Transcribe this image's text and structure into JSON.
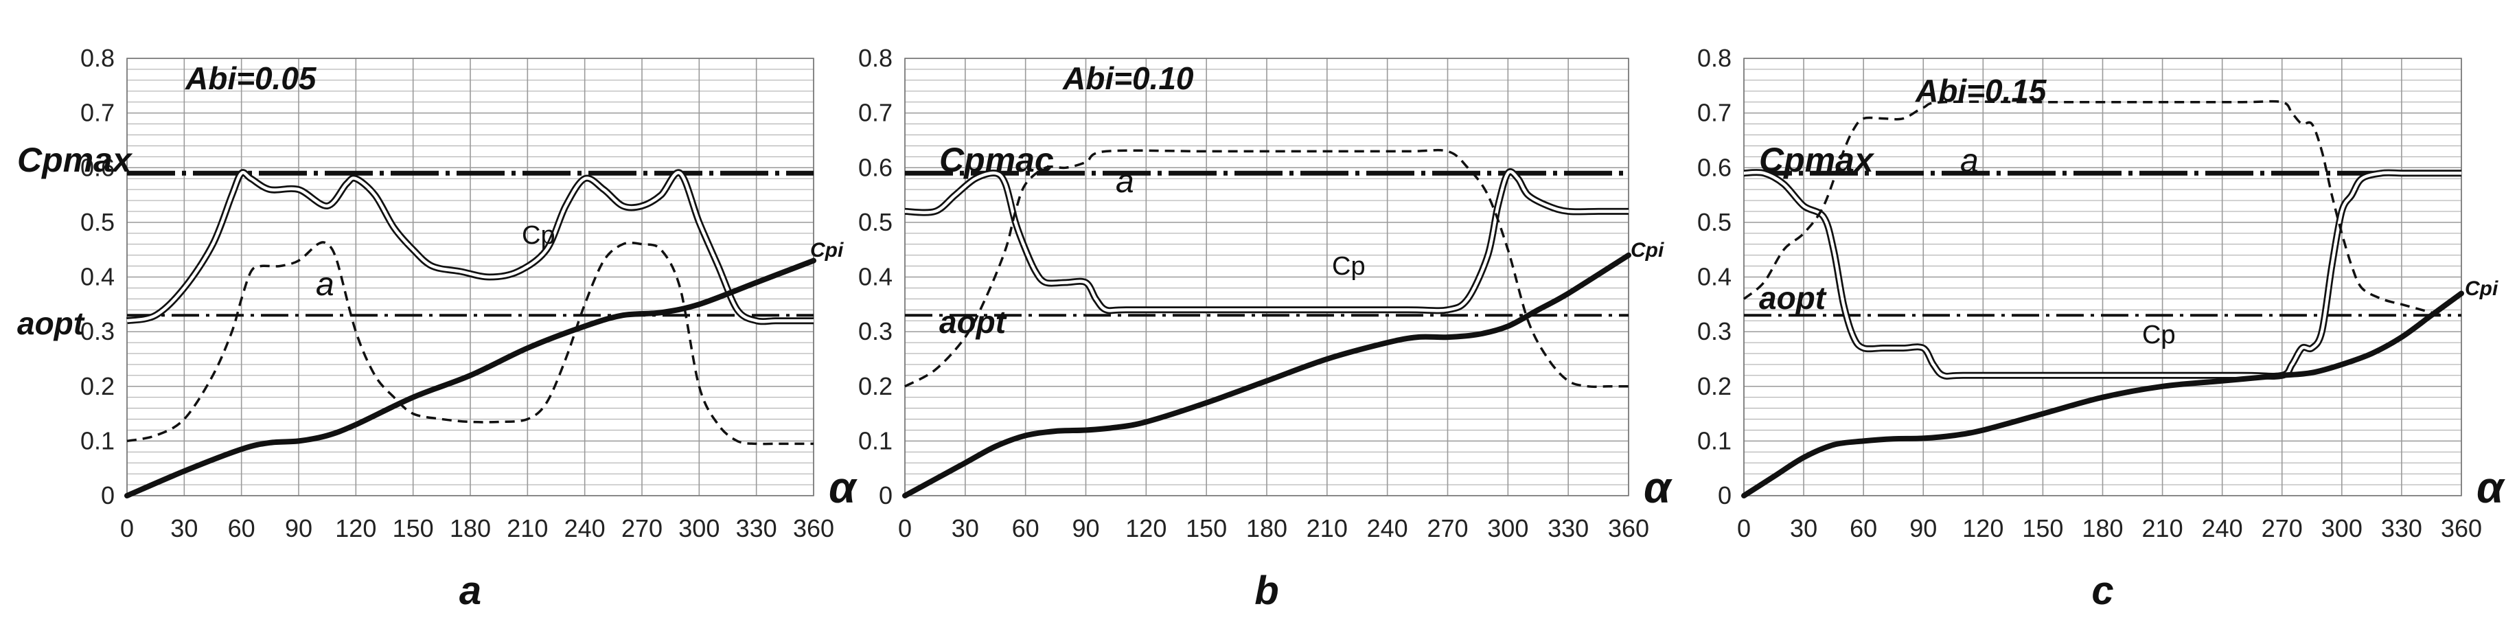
{
  "colors": {
    "grid": "#9a9a9a",
    "curve": "#111111",
    "background": "#ffffff"
  },
  "chart_data": [
    {
      "type": "line",
      "panel_label": "a",
      "title": "Abi=0.05",
      "xlabel": "α",
      "xlim": [
        0,
        360
      ],
      "ylim": [
        0,
        0.8
      ],
      "x_ticks": [
        "0",
        "30",
        "60",
        "90",
        "120",
        "150",
        "180",
        "210",
        "240",
        "270",
        "300",
        "330",
        "360"
      ],
      "y_ticks": [
        "0",
        "0.1",
        "0.2",
        "0.3",
        "0.4",
        "0.5",
        "0.6",
        "0.7",
        "0.8"
      ],
      "grid": true,
      "hlines": [
        {
          "name": "Cpmax",
          "label": "Cpmax",
          "y": 0.59
        },
        {
          "name": "aopt",
          "label": "aopt",
          "y": 0.33
        }
      ],
      "series": [
        {
          "name": "Cp",
          "label": "Cp",
          "x": [
            0,
            15,
            30,
            45,
            55,
            60,
            65,
            75,
            90,
            105,
            115,
            120,
            130,
            140,
            150,
            160,
            175,
            190,
            205,
            220,
            230,
            240,
            250,
            260,
            270,
            280,
            290,
            300,
            310,
            320,
            330,
            340,
            350,
            360
          ],
          "y": [
            0.32,
            0.33,
            0.38,
            0.46,
            0.55,
            0.59,
            0.58,
            0.56,
            0.56,
            0.53,
            0.57,
            0.58,
            0.55,
            0.49,
            0.45,
            0.42,
            0.41,
            0.4,
            0.41,
            0.45,
            0.53,
            0.58,
            0.56,
            0.53,
            0.53,
            0.55,
            0.59,
            0.5,
            0.42,
            0.34,
            0.32,
            0.32,
            0.32,
            0.32
          ]
        },
        {
          "name": "a",
          "label": "a",
          "x": [
            0,
            15,
            30,
            45,
            55,
            60,
            65,
            70,
            80,
            90,
            100,
            105,
            110,
            120,
            130,
            140,
            150,
            165,
            180,
            195,
            210,
            220,
            230,
            240,
            250,
            260,
            270,
            280,
            290,
            300,
            310,
            320,
            330,
            340,
            350,
            360
          ],
          "y": [
            0.1,
            0.11,
            0.14,
            0.22,
            0.3,
            0.36,
            0.41,
            0.42,
            0.42,
            0.43,
            0.46,
            0.46,
            0.43,
            0.3,
            0.22,
            0.18,
            0.15,
            0.14,
            0.135,
            0.135,
            0.14,
            0.17,
            0.25,
            0.35,
            0.43,
            0.46,
            0.46,
            0.45,
            0.38,
            0.2,
            0.13,
            0.1,
            0.095,
            0.095,
            0.095,
            0.095
          ]
        },
        {
          "name": "Cpi",
          "label": "Cpi",
          "x": [
            0,
            30,
            60,
            75,
            90,
            105,
            120,
            150,
            180,
            210,
            240,
            260,
            280,
            300,
            330,
            360
          ],
          "y": [
            0,
            0.045,
            0.085,
            0.097,
            0.1,
            0.11,
            0.13,
            0.18,
            0.22,
            0.27,
            0.31,
            0.33,
            0.335,
            0.35,
            0.39,
            0.43
          ]
        }
      ]
    },
    {
      "type": "line",
      "panel_label": "b",
      "title": "Abi=0.10",
      "xlabel": "α",
      "xlim": [
        0,
        360
      ],
      "ylim": [
        0,
        0.8
      ],
      "x_ticks": [
        "0",
        "30",
        "60",
        "90",
        "120",
        "150",
        "180",
        "210",
        "240",
        "270",
        "300",
        "330",
        "360"
      ],
      "y_ticks": [
        "0",
        "0.1",
        "0.2",
        "0.3",
        "0.4",
        "0.5",
        "0.6",
        "0.7",
        "0.8"
      ],
      "grid": true,
      "hlines": [
        {
          "name": "Cpmax",
          "label": "Cpmac",
          "y": 0.59
        },
        {
          "name": "aopt",
          "label": "aopt",
          "y": 0.33
        }
      ],
      "series": [
        {
          "name": "Cp",
          "label": "Cp",
          "x": [
            0,
            15,
            25,
            35,
            45,
            50,
            55,
            60,
            65,
            70,
            80,
            90,
            95,
            100,
            110,
            150,
            200,
            250,
            270,
            280,
            290,
            295,
            300,
            305,
            310,
            320,
            330,
            345,
            360
          ],
          "y": [
            0.52,
            0.52,
            0.55,
            0.58,
            0.59,
            0.57,
            0.5,
            0.45,
            0.41,
            0.39,
            0.39,
            0.39,
            0.36,
            0.34,
            0.34,
            0.34,
            0.34,
            0.34,
            0.34,
            0.36,
            0.44,
            0.53,
            0.59,
            0.58,
            0.55,
            0.53,
            0.52,
            0.52,
            0.52
          ]
        },
        {
          "name": "a",
          "label": "a",
          "x": [
            0,
            15,
            30,
            40,
            50,
            55,
            60,
            70,
            80,
            90,
            100,
            150,
            200,
            250,
            270,
            280,
            290,
            300,
            310,
            320,
            330,
            340,
            350,
            360
          ],
          "y": [
            0.2,
            0.23,
            0.29,
            0.36,
            0.45,
            0.52,
            0.57,
            0.6,
            0.6,
            0.61,
            0.63,
            0.63,
            0.63,
            0.63,
            0.63,
            0.6,
            0.55,
            0.45,
            0.32,
            0.25,
            0.21,
            0.2,
            0.2,
            0.2
          ]
        },
        {
          "name": "Cpi",
          "label": "Cpi",
          "x": [
            0,
            15,
            30,
            45,
            60,
            75,
            90,
            105,
            120,
            150,
            180,
            210,
            240,
            255,
            270,
            285,
            300,
            315,
            330,
            360
          ],
          "y": [
            0,
            0.03,
            0.06,
            0.09,
            0.11,
            0.118,
            0.12,
            0.125,
            0.135,
            0.17,
            0.21,
            0.25,
            0.28,
            0.29,
            0.29,
            0.295,
            0.31,
            0.34,
            0.37,
            0.44
          ]
        }
      ]
    },
    {
      "type": "line",
      "panel_label": "c",
      "title": "Abi=0.15",
      "xlabel": "α",
      "xlim": [
        0,
        360
      ],
      "ylim": [
        0,
        0.8
      ],
      "x_ticks": [
        "0",
        "30",
        "60",
        "90",
        "120",
        "150",
        "180",
        "210",
        "240",
        "270",
        "300",
        "330",
        "360"
      ],
      "y_ticks": [
        "0",
        "0.1",
        "0.2",
        "0.3",
        "0.4",
        "0.5",
        "0.6",
        "0.7",
        "0.8"
      ],
      "grid": true,
      "hlines": [
        {
          "name": "Cpmax",
          "label": "Cpmax",
          "y": 0.59
        },
        {
          "name": "aopt",
          "label": "aopt",
          "y": 0.33
        }
      ],
      "series": [
        {
          "name": "Cp",
          "label": "Cp",
          "x": [
            0,
            10,
            20,
            30,
            40,
            45,
            50,
            55,
            60,
            70,
            80,
            90,
            95,
            100,
            110,
            150,
            200,
            250,
            270,
            275,
            280,
            285,
            290,
            295,
            300,
            305,
            310,
            320,
            330,
            340,
            360
          ],
          "y": [
            0.59,
            0.59,
            0.57,
            0.53,
            0.51,
            0.45,
            0.35,
            0.29,
            0.27,
            0.27,
            0.27,
            0.27,
            0.24,
            0.22,
            0.22,
            0.22,
            0.22,
            0.22,
            0.22,
            0.24,
            0.27,
            0.27,
            0.3,
            0.42,
            0.52,
            0.55,
            0.58,
            0.59,
            0.59,
            0.59,
            0.59
          ]
        },
        {
          "name": "a",
          "label": "a",
          "x": [
            0,
            10,
            20,
            30,
            40,
            50,
            55,
            60,
            70,
            80,
            90,
            100,
            150,
            200,
            250,
            270,
            275,
            280,
            285,
            290,
            295,
            300,
            305,
            310,
            320,
            330,
            340,
            350
          ],
          "y": [
            0.36,
            0.39,
            0.45,
            0.48,
            0.53,
            0.63,
            0.67,
            0.69,
            0.69,
            0.69,
            0.71,
            0.72,
            0.72,
            0.72,
            0.72,
            0.72,
            0.7,
            0.68,
            0.68,
            0.63,
            0.55,
            0.48,
            0.42,
            0.38,
            0.36,
            0.35,
            0.34,
            0.33
          ]
        },
        {
          "name": "Cpi",
          "label": "Cpi",
          "x": [
            0,
            15,
            30,
            45,
            60,
            75,
            90,
            105,
            120,
            150,
            180,
            210,
            240,
            255,
            270,
            285,
            300,
            315,
            330,
            345,
            360
          ],
          "y": [
            0,
            0.035,
            0.07,
            0.093,
            0.1,
            0.104,
            0.105,
            0.11,
            0.12,
            0.15,
            0.18,
            0.2,
            0.21,
            0.215,
            0.22,
            0.225,
            0.24,
            0.26,
            0.29,
            0.33,
            0.37
          ]
        }
      ]
    }
  ]
}
